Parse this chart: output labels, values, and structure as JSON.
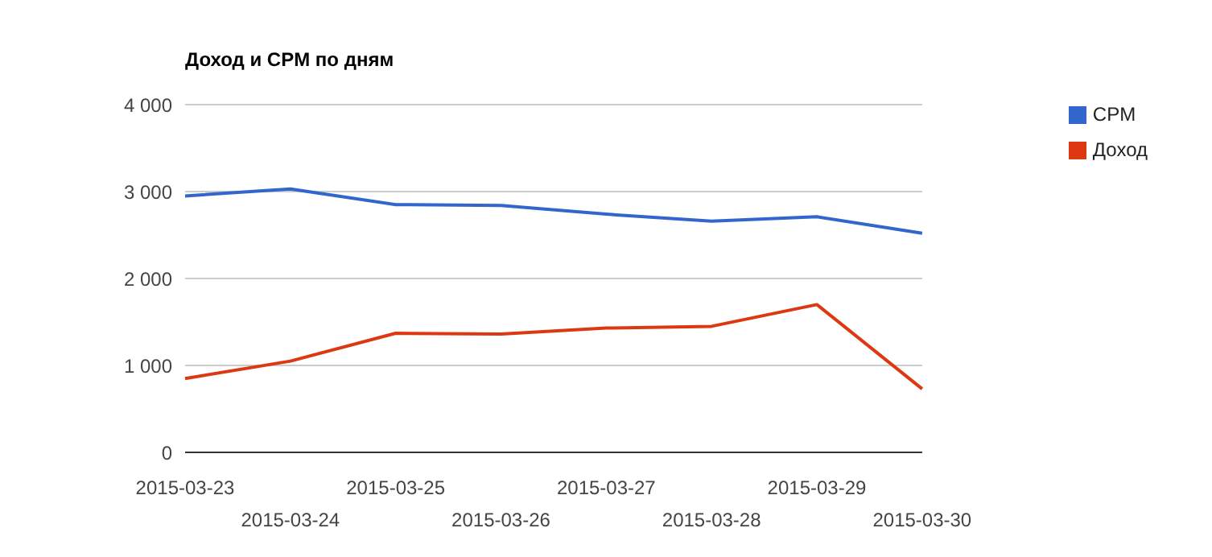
{
  "chart_data": {
    "type": "line",
    "title": "Доход и CPM по дням",
    "categories": [
      "2015-03-23",
      "2015-03-24",
      "2015-03-25",
      "2015-03-26",
      "2015-03-27",
      "2015-03-28",
      "2015-03-29",
      "2015-03-30"
    ],
    "series": [
      {
        "name": "CPM",
        "color": "#3366cc",
        "values": [
          2950,
          3030,
          2850,
          2840,
          2740,
          2660,
          2710,
          2520
        ]
      },
      {
        "name": "Доход",
        "color": "#dc3912",
        "values": [
          850,
          1050,
          1370,
          1360,
          1430,
          1450,
          1700,
          730
        ]
      }
    ],
    "ylim": [
      0,
      4000
    ],
    "yticks": [
      {
        "value": 0,
        "label": "0"
      },
      {
        "value": 1000,
        "label": "1 000"
      },
      {
        "value": 2000,
        "label": "2 000"
      },
      {
        "value": 3000,
        "label": "3 000"
      },
      {
        "value": 4000,
        "label": "4 000"
      }
    ],
    "grid": "y",
    "legend": "top right",
    "marker": "none",
    "line_style": "solid"
  }
}
